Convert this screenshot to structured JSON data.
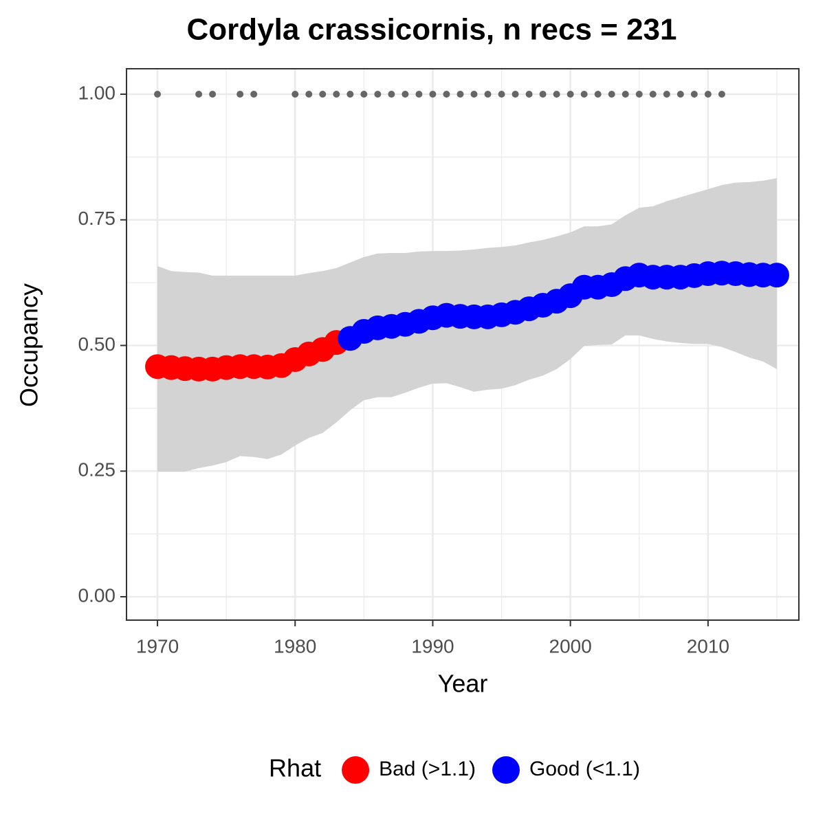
{
  "chart_data": {
    "type": "line",
    "title": "Cordyla crassicornis, n recs = 231",
    "x_label": "Year",
    "y_label": "Occupancy",
    "x": [
      1970,
      1971,
      1972,
      1973,
      1974,
      1975,
      1976,
      1977,
      1978,
      1979,
      1980,
      1981,
      1982,
      1983,
      1984,
      1985,
      1986,
      1987,
      1988,
      1989,
      1990,
      1991,
      1992,
      1993,
      1994,
      1995,
      1996,
      1997,
      1998,
      1999,
      2000,
      2001,
      2002,
      2003,
      2004,
      2005,
      2006,
      2007,
      2008,
      2009,
      2010,
      2011,
      2012,
      2013,
      2014,
      2015
    ],
    "xlim": [
      1967.75,
      2016.6
    ],
    "xticks": [
      1970,
      1980,
      1990,
      2000,
      2010
    ],
    "xminor": [
      1975,
      1985,
      1995,
      2005,
      2015
    ],
    "ylim": [
      -0.0465,
      1.0506
    ],
    "yticks": [
      {
        "value": 0,
        "label": "0.00"
      },
      {
        "value": 0.25,
        "label": "0.25"
      },
      {
        "value": 0.5,
        "label": "0.50"
      },
      {
        "value": 0.75,
        "label": "0.75"
      },
      {
        "value": 1,
        "label": "1.00"
      }
    ],
    "yminor": [
      0.125,
      0.375,
      0.625,
      0.875
    ],
    "grid": true,
    "legend_title": "Rhat",
    "legend_position": "bottom",
    "series": [
      {
        "name": "Bad (>1.1)",
        "color": "#ff0000",
        "values": [
          0.458,
          0.456,
          0.454,
          0.453,
          0.453,
          0.456,
          0.458,
          0.458,
          0.457,
          0.46,
          0.472,
          0.483,
          0.492,
          0.506,
          null,
          null,
          null,
          null,
          null,
          null,
          null,
          null,
          null,
          null,
          null,
          null,
          null,
          null,
          null,
          null,
          null,
          null,
          null,
          null,
          null,
          null,
          null,
          null,
          null,
          null,
          null,
          null,
          null,
          null,
          null,
          null
        ]
      },
      {
        "name": "Good (<1.1)",
        "color": "#0000ff",
        "values": [
          null,
          null,
          null,
          null,
          null,
          null,
          null,
          null,
          null,
          null,
          null,
          null,
          null,
          null,
          0.514,
          0.528,
          0.535,
          0.538,
          0.542,
          0.548,
          0.555,
          0.56,
          0.558,
          0.557,
          0.557,
          0.561,
          0.566,
          0.573,
          0.58,
          0.588,
          0.599,
          0.616,
          0.616,
          0.621,
          0.633,
          0.64,
          0.636,
          0.636,
          0.636,
          0.639,
          0.643,
          0.644,
          0.643,
          0.641,
          0.64,
          0.64
        ]
      }
    ],
    "band": {
      "color": "#d3d3d3",
      "upper": [
        0.658,
        0.648,
        0.646,
        0.645,
        0.639,
        0.639,
        0.639,
        0.639,
        0.639,
        0.639,
        0.639,
        0.644,
        0.648,
        0.654,
        0.665,
        0.676,
        0.683,
        0.684,
        0.684,
        0.687,
        0.688,
        0.688,
        0.689,
        0.691,
        0.694,
        0.696,
        0.699,
        0.705,
        0.71,
        0.717,
        0.725,
        0.737,
        0.737,
        0.741,
        0.759,
        0.774,
        0.777,
        0.787,
        0.795,
        0.803,
        0.811,
        0.819,
        0.824,
        0.825,
        0.828,
        0.833
      ],
      "lower": [
        0.249,
        0.249,
        0.249,
        0.256,
        0.261,
        0.268,
        0.28,
        0.278,
        0.274,
        0.283,
        0.301,
        0.316,
        0.326,
        0.347,
        0.371,
        0.391,
        0.397,
        0.397,
        0.406,
        0.416,
        0.424,
        0.425,
        0.417,
        0.408,
        0.412,
        0.414,
        0.421,
        0.432,
        0.44,
        0.453,
        0.473,
        0.499,
        0.501,
        0.502,
        0.52,
        0.52,
        0.513,
        0.508,
        0.505,
        0.503,
        0.503,
        0.497,
        0.487,
        0.476,
        0.468,
        0.453
      ]
    },
    "records": {
      "color": "#666666",
      "x": [
        1970,
        1973,
        1974,
        1976,
        1977,
        1980,
        1981,
        1982,
        1983,
        1984,
        1985,
        1986,
        1987,
        1988,
        1989,
        1990,
        1991,
        1992,
        1993,
        1994,
        1995,
        1996,
        1997,
        1998,
        1999,
        2000,
        2001,
        2002,
        2003,
        2004,
        2005,
        2006,
        2007,
        2008,
        2009,
        2010,
        2011
      ],
      "values": [
        1,
        1,
        1,
        1,
        1,
        1,
        1,
        1,
        1,
        1,
        1,
        1,
        1,
        1,
        1,
        1,
        1,
        1,
        1,
        1,
        1,
        1,
        1,
        1,
        1,
        1,
        1,
        1,
        1,
        1,
        1,
        1,
        1,
        1,
        1,
        1,
        1
      ]
    }
  }
}
